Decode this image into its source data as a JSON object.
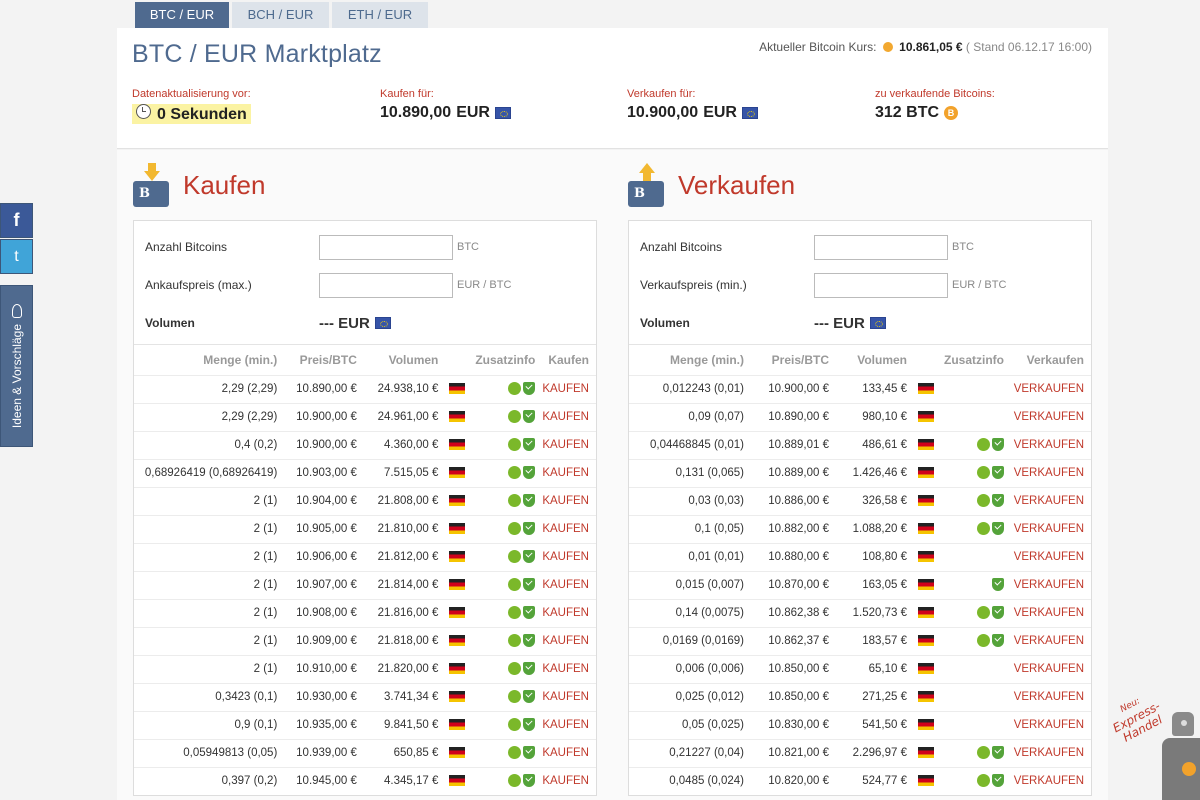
{
  "tabs": [
    {
      "label": "BTC / EUR",
      "active": true
    },
    {
      "label": "BCH / EUR",
      "active": false
    },
    {
      "label": "ETH / EUR",
      "active": false
    }
  ],
  "header": {
    "title": "BTC / EUR Marktplatz",
    "kurs_label": "Aktueller Bitcoin Kurs:",
    "kurs_value": "10.861,05 €",
    "kurs_stand": "( Stand 06.12.17 16:00)",
    "stats": {
      "update": {
        "label": "Datenaktualisierung vor:",
        "value": "0 Sekunden"
      },
      "buy": {
        "label": "Kaufen für:",
        "value": "10.890,00",
        "unit": "EUR"
      },
      "sell": {
        "label": "Verkaufen für:",
        "value": "10.900,00",
        "unit": "EUR"
      },
      "available": {
        "label": "zu verkaufende Bitcoins:",
        "value": "312 BTC"
      }
    }
  },
  "buy_panel": {
    "title": "Kaufen",
    "form": {
      "amount_label": "Anzahl Bitcoins",
      "amount_value": "",
      "amount_unit": "BTC",
      "price_label": "Ankaufspreis (max.)",
      "price_value": "",
      "price_unit": "EUR / BTC",
      "volume_label": "Volumen",
      "volume_value": "--- EUR"
    },
    "columns": [
      "Menge (min.)",
      "Preis/BTC",
      "Volumen",
      "",
      "Zusatzinfo",
      "Kaufen"
    ],
    "rows": [
      {
        "menge": "2,29 (2,29)",
        "preis": "10.890,00 €",
        "volumen": "24.938,10 €",
        "leaf": true,
        "shield": true,
        "action": "KAUFEN"
      },
      {
        "menge": "2,29 (2,29)",
        "preis": "10.900,00 €",
        "volumen": "24.961,00 €",
        "leaf": true,
        "shield": true,
        "action": "KAUFEN"
      },
      {
        "menge": "0,4 (0,2)",
        "preis": "10.900,00 €",
        "volumen": "4.360,00 €",
        "leaf": true,
        "shield": true,
        "action": "KAUFEN"
      },
      {
        "menge": "0,68926419 (0,68926419)",
        "preis": "10.903,00 €",
        "volumen": "7.515,05 €",
        "leaf": true,
        "shield": true,
        "action": "KAUFEN"
      },
      {
        "menge": "2 (1)",
        "preis": "10.904,00 €",
        "volumen": "21.808,00 €",
        "leaf": true,
        "shield": true,
        "action": "KAUFEN"
      },
      {
        "menge": "2 (1)",
        "preis": "10.905,00 €",
        "volumen": "21.810,00 €",
        "leaf": true,
        "shield": true,
        "action": "KAUFEN"
      },
      {
        "menge": "2 (1)",
        "preis": "10.906,00 €",
        "volumen": "21.812,00 €",
        "leaf": true,
        "shield": true,
        "action": "KAUFEN"
      },
      {
        "menge": "2 (1)",
        "preis": "10.907,00 €",
        "volumen": "21.814,00 €",
        "leaf": true,
        "shield": true,
        "action": "KAUFEN"
      },
      {
        "menge": "2 (1)",
        "preis": "10.908,00 €",
        "volumen": "21.816,00 €",
        "leaf": true,
        "shield": true,
        "action": "KAUFEN"
      },
      {
        "menge": "2 (1)",
        "preis": "10.909,00 €",
        "volumen": "21.818,00 €",
        "leaf": true,
        "shield": true,
        "action": "KAUFEN"
      },
      {
        "menge": "2 (1)",
        "preis": "10.910,00 €",
        "volumen": "21.820,00 €",
        "leaf": true,
        "shield": true,
        "action": "KAUFEN"
      },
      {
        "menge": "0,3423 (0,1)",
        "preis": "10.930,00 €",
        "volumen": "3.741,34 €",
        "leaf": true,
        "shield": true,
        "action": "KAUFEN"
      },
      {
        "menge": "0,9 (0,1)",
        "preis": "10.935,00 €",
        "volumen": "9.841,50 €",
        "leaf": true,
        "shield": true,
        "action": "KAUFEN"
      },
      {
        "menge": "0,05949813 (0,05)",
        "preis": "10.939,00 €",
        "volumen": "650,85 €",
        "leaf": true,
        "shield": true,
        "action": "KAUFEN"
      },
      {
        "menge": "0,397 (0,2)",
        "preis": "10.945,00 €",
        "volumen": "4.345,17 €",
        "leaf": true,
        "shield": true,
        "action": "KAUFEN"
      }
    ]
  },
  "sell_panel": {
    "title": "Verkaufen",
    "form": {
      "amount_label": "Anzahl Bitcoins",
      "amount_value": "",
      "amount_unit": "BTC",
      "price_label": "Verkaufspreis (min.)",
      "price_value": "",
      "price_unit": "EUR / BTC",
      "volume_label": "Volumen",
      "volume_value": "--- EUR"
    },
    "columns": [
      "Menge (min.)",
      "Preis/BTC",
      "Volumen",
      "",
      "Zusatzinfo",
      "Verkaufen"
    ],
    "rows": [
      {
        "menge": "0,012243 (0,01)",
        "preis": "10.900,00 €",
        "volumen": "133,45 €",
        "leaf": false,
        "shield": false,
        "action": "VERKAUFEN"
      },
      {
        "menge": "0,09 (0,07)",
        "preis": "10.890,00 €",
        "volumen": "980,10 €",
        "leaf": false,
        "shield": false,
        "action": "VERKAUFEN"
      },
      {
        "menge": "0,04468845 (0,01)",
        "preis": "10.889,01 €",
        "volumen": "486,61 €",
        "leaf": true,
        "shield": true,
        "action": "VERKAUFEN"
      },
      {
        "menge": "0,131 (0,065)",
        "preis": "10.889,00 €",
        "volumen": "1.426,46 €",
        "leaf": true,
        "shield": true,
        "action": "VERKAUFEN"
      },
      {
        "menge": "0,03 (0,03)",
        "preis": "10.886,00 €",
        "volumen": "326,58 €",
        "leaf": true,
        "shield": true,
        "action": "VERKAUFEN"
      },
      {
        "menge": "0,1 (0,05)",
        "preis": "10.882,00 €",
        "volumen": "1.088,20 €",
        "leaf": true,
        "shield": true,
        "action": "VERKAUFEN"
      },
      {
        "menge": "0,01 (0,01)",
        "preis": "10.880,00 €",
        "volumen": "108,80 €",
        "leaf": false,
        "shield": false,
        "action": "VERKAUFEN"
      },
      {
        "menge": "0,015 (0,007)",
        "preis": "10.870,00 €",
        "volumen": "163,05 €",
        "leaf": false,
        "shield": true,
        "action": "VERKAUFEN"
      },
      {
        "menge": "0,14 (0,0075)",
        "preis": "10.862,38 €",
        "volumen": "1.520,73 €",
        "leaf": true,
        "shield": true,
        "action": "VERKAUFEN"
      },
      {
        "menge": "0,0169 (0,0169)",
        "preis": "10.862,37 €",
        "volumen": "183,57 €",
        "leaf": true,
        "shield": true,
        "action": "VERKAUFEN"
      },
      {
        "menge": "0,006 (0,006)",
        "preis": "10.850,00 €",
        "volumen": "65,10 €",
        "leaf": false,
        "shield": false,
        "action": "VERKAUFEN"
      },
      {
        "menge": "0,025 (0,012)",
        "preis": "10.850,00 €",
        "volumen": "271,25 €",
        "leaf": false,
        "shield": false,
        "action": "VERKAUFEN"
      },
      {
        "menge": "0,05 (0,025)",
        "preis": "10.830,00 €",
        "volumen": "541,50 €",
        "leaf": false,
        "shield": false,
        "action": "VERKAUFEN"
      },
      {
        "menge": "0,21227 (0,04)",
        "preis": "10.821,00 €",
        "volumen": "2.296,97 €",
        "leaf": true,
        "shield": true,
        "action": "VERKAUFEN"
      },
      {
        "menge": "0,0485 (0,024)",
        "preis": "10.820,00 €",
        "volumen": "524,77 €",
        "leaf": true,
        "shield": true,
        "action": "VERKAUFEN"
      }
    ]
  },
  "social": {
    "facebook": "f",
    "twitter": "t",
    "ideas": "Ideen & Vorschläge"
  },
  "express": {
    "neu": "Neu:",
    "line1": "Express-",
    "line2": "Handel"
  },
  "colors": {
    "brand": "#4f6a8f",
    "accent_red": "#c0392b",
    "highlight": "#fbf3a3"
  }
}
